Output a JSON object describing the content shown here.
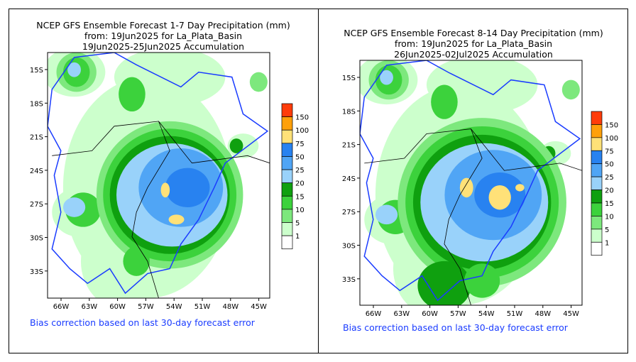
{
  "panels": [
    {
      "title_line1": "NCEP GFS Ensemble Forecast 1-7 Day Precipitation (mm)",
      "title_line2": "from: 19Jun2025   for La_Plata_Basin",
      "title_line3": "19Jun2025-25Jun2025 Accumulation",
      "note": "Bias correction based on last 30-day forecast error"
    },
    {
      "title_line1": "NCEP GFS Ensemble Forecast 8-14 Day Precipitation (mm)",
      "title_line2": "from: 19Jun2025   for La_Plata_Basin",
      "title_line3": "26Jun2025-02Jul2025 Accumulation",
      "note": "Bias correction based on last 30-day forecast error"
    }
  ],
  "axes": {
    "lon_labels": [
      "66W",
      "63W",
      "60W",
      "57W",
      "54W",
      "51W",
      "48W",
      "45W"
    ],
    "lat_labels": [
      "15S",
      "18S",
      "21S",
      "24S",
      "27S",
      "30S",
      "33S"
    ]
  },
  "legend": {
    "levels": [
      "1",
      "5",
      "10",
      "15",
      "20",
      "25",
      "50",
      "75",
      "100",
      "150"
    ],
    "colors": [
      "#ffffff",
      "#ccffcc",
      "#7de87d",
      "#3cd23c",
      "#0fa00f",
      "#99d2fa",
      "#50a5f5",
      "#2882f0",
      "#ffe178",
      "#ffa00a",
      "#ff3c0a"
    ]
  },
  "basin_outline_color": "#1a3cff"
}
